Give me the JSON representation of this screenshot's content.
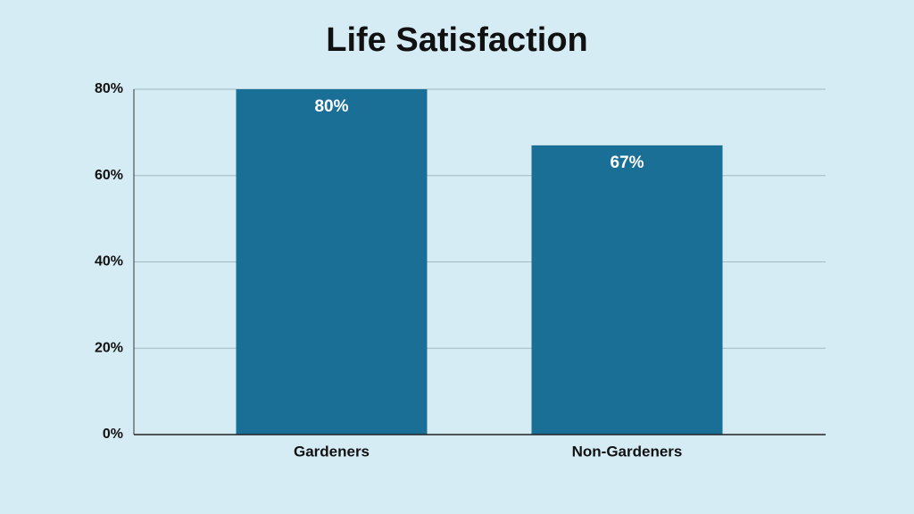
{
  "chart_data": {
    "type": "bar",
    "title": "Life Satisfaction",
    "categories": [
      "Gardeners",
      "Non-Gardeners"
    ],
    "values": [
      80,
      67
    ],
    "value_labels": [
      "80%",
      "67%"
    ],
    "color": "#1a6f96",
    "ylim": [
      0,
      80
    ],
    "yticks": [
      {
        "value": 0,
        "label": "0%"
      },
      {
        "value": 20,
        "label": "20%"
      },
      {
        "value": 40,
        "label": "40%"
      },
      {
        "value": 60,
        "label": "60%"
      },
      {
        "value": 80,
        "label": "80%"
      }
    ],
    "grid": true
  }
}
